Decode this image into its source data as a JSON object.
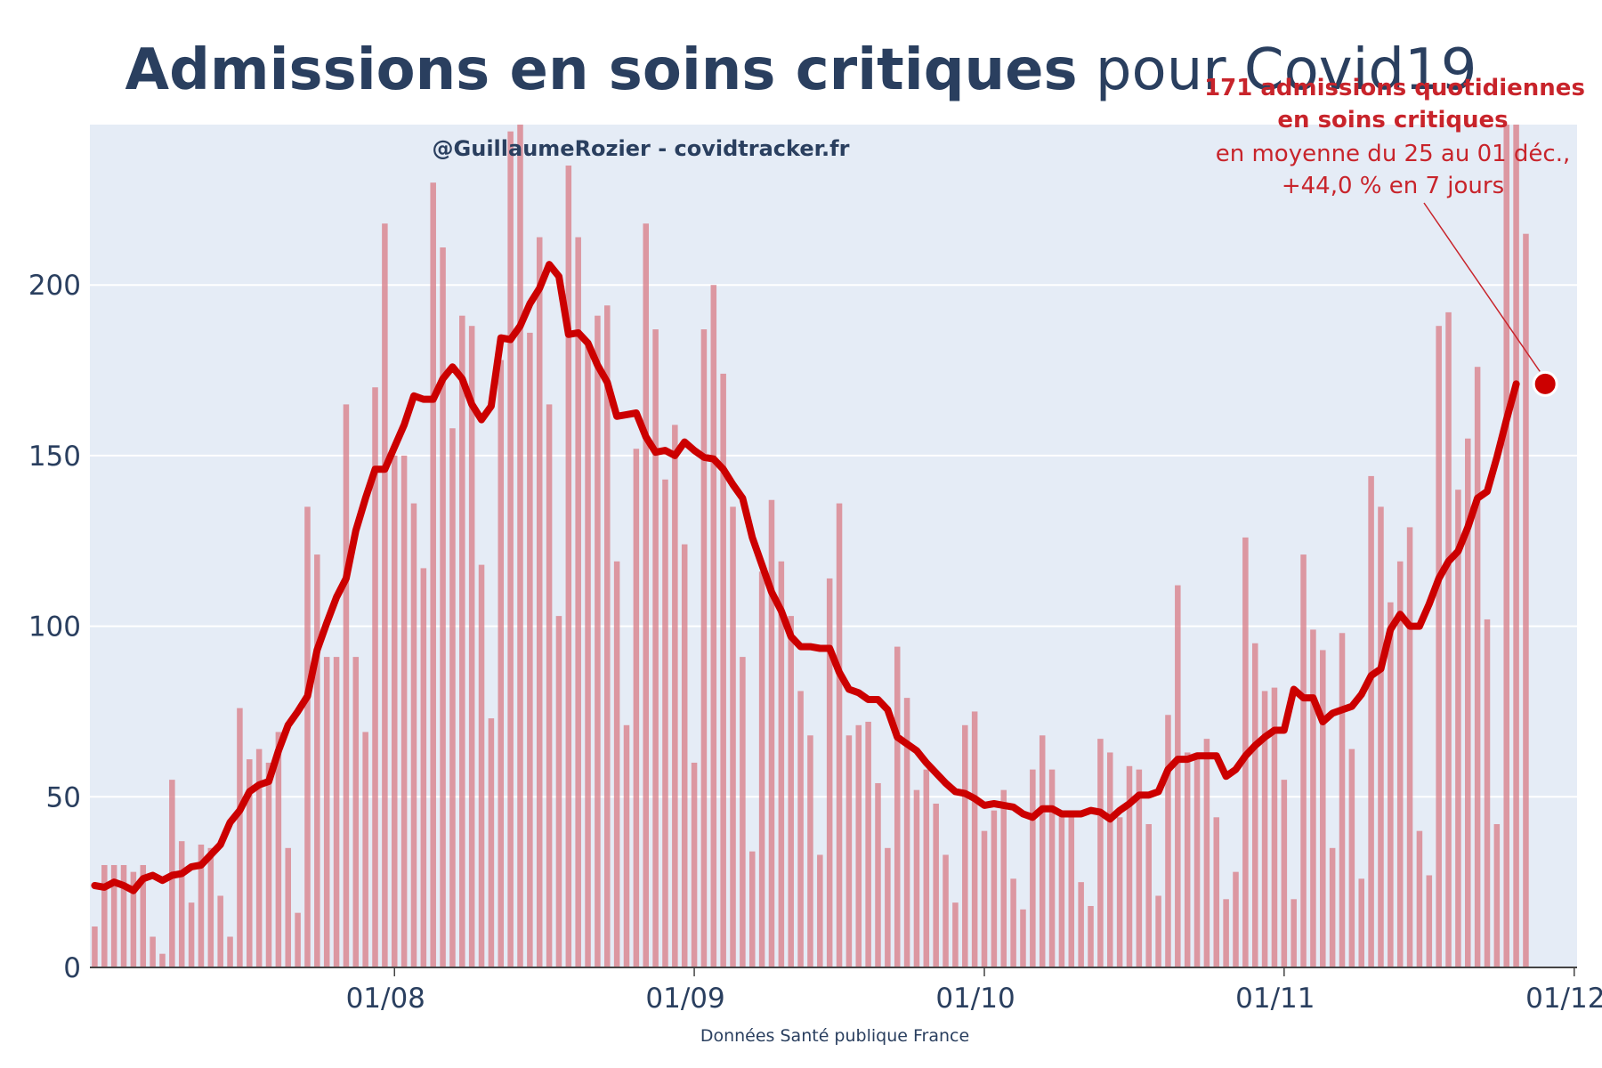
{
  "title": {
    "bold": "Admissions en soins critiques",
    "regular": " pour Covid19"
  },
  "credit": "@GuillaumeRozier - covidtracker.fr",
  "source": "Données Santé publique France",
  "annotation": {
    "line1": "171 admissions quotidiennes",
    "line2": "en soins critiques",
    "line3": "en moyenne du 25 au 01 déc.,",
    "line4": "+44,0 % en 7 jours"
  },
  "colors": {
    "bar": "#d9828c",
    "line": "#cc0000",
    "plot_bg": "#e5ecf6",
    "text": "#2a3f5f",
    "annotation": "#c8242b"
  },
  "chart_data": {
    "type": "bar",
    "start_date": "2021-07-01",
    "ylim": [
      0,
      247
    ],
    "y_ticks": [
      0,
      50,
      100,
      150,
      200
    ],
    "y_tick_labels": [
      "0",
      "50",
      "100",
      "150",
      "200"
    ],
    "x_ticks": [
      {
        "date": "2021-08-01",
        "label": "01/08"
      },
      {
        "date": "2021-09-01",
        "label": "01/09"
      },
      {
        "date": "2021-10-01",
        "label": "01/10"
      },
      {
        "date": "2021-11-01",
        "label": "01/11"
      },
      {
        "date": "2021-12-01",
        "label": "01/12"
      }
    ],
    "series": [
      {
        "name": "Admissions quotidiennes",
        "type": "bar",
        "values": [
          12,
          30,
          30,
          30,
          28,
          30,
          9,
          4,
          55,
          37,
          19,
          36,
          35,
          21,
          9,
          76,
          61,
          64,
          60,
          69,
          35,
          16,
          135,
          121,
          91,
          91,
          165,
          91,
          69,
          170,
          218,
          150,
          150,
          136,
          117,
          230,
          211,
          158,
          191,
          188,
          118,
          73,
          178,
          245,
          250,
          186,
          214,
          165,
          103,
          235,
          214,
          182,
          191,
          194,
          119,
          71,
          152,
          218,
          187,
          143,
          159,
          124,
          60,
          187,
          200,
          174,
          135,
          91,
          34,
          116,
          137,
          119,
          103,
          81,
          68,
          33,
          114,
          136,
          68,
          71,
          72,
          54,
          35,
          94,
          79,
          52,
          58,
          48,
          33,
          19,
          71,
          75,
          40,
          46,
          52,
          26,
          17,
          58,
          68,
          58,
          45,
          44,
          25,
          18,
          67,
          63,
          44,
          59,
          58,
          42,
          21,
          74,
          112,
          63,
          62,
          67,
          44,
          20,
          28,
          126,
          95,
          81,
          82,
          55,
          20,
          121,
          99,
          93,
          35,
          98,
          64,
          26,
          144,
          135,
          107,
          119,
          129,
          40,
          27,
          188,
          192,
          140,
          155,
          176,
          102,
          42,
          250,
          250,
          215
        ]
      },
      {
        "name": "Moyenne 7 jours",
        "type": "line",
        "values": [
          24,
          23.5,
          25,
          24,
          22.5,
          26,
          27,
          25.5,
          27,
          27.5,
          29.5,
          30,
          33,
          36,
          42.5,
          46,
          51.5,
          53.5,
          54.5,
          63.5,
          71,
          75,
          79.5,
          93,
          101,
          108.5,
          114,
          128,
          137.5,
          146,
          146,
          152.5,
          159,
          167.5,
          166.5,
          166.5,
          172.5,
          176,
          172.5,
          165,
          160.5,
          164.5,
          184.5,
          184,
          188,
          194.5,
          199,
          206,
          202.5,
          185.5,
          186,
          183,
          176.5,
          171.5,
          161.5,
          162,
          162.5,
          155.5,
          151,
          151.5,
          150,
          154,
          151.5,
          149.5,
          149,
          146,
          141.5,
          137.5,
          126,
          118,
          110,
          104.5,
          97,
          94,
          94,
          93.5,
          93.5,
          86.5,
          81.5,
          80.5,
          78.5,
          78.5,
          75.5,
          67.5,
          65.5,
          63.5,
          60,
          57,
          54,
          51.5,
          51,
          49.5,
          47.5,
          48,
          47.5,
          47,
          45,
          44,
          46.5,
          46.5,
          45,
          45,
          45,
          46,
          45.5,
          43.5,
          46,
          48,
          50.5,
          50.5,
          51.5,
          58,
          61,
          61,
          62,
          62,
          62,
          56,
          58,
          62,
          65,
          67.5,
          69.5,
          69.5,
          81.5,
          79,
          79,
          72,
          74.5,
          75.5,
          76.5,
          80,
          85.5,
          87.5,
          99,
          103.5,
          100,
          100,
          106.5,
          114,
          119,
          122,
          129,
          137.5,
          139.5,
          149.5,
          160.5,
          171
        ]
      }
    ],
    "highlight": {
      "date": "2021-11-28",
      "value": 171
    }
  }
}
